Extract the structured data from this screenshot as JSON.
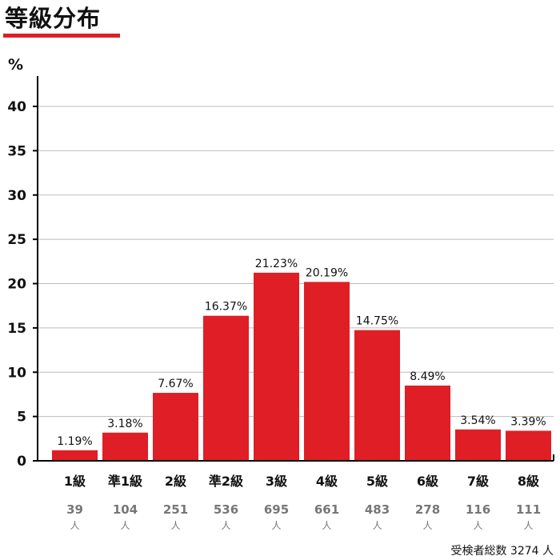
{
  "title": "等級分布",
  "colors": {
    "bar": "#e01e26",
    "accent_line": "#e01e26",
    "grid": "#bbbbbb",
    "axis": "#000000",
    "count_text": "#777777"
  },
  "chart_data": {
    "type": "bar",
    "title": "等級分布",
    "ylabel": "%",
    "xlabel": "",
    "ylim": [
      0,
      43
    ],
    "yticks": [
      0,
      5,
      10,
      15,
      20,
      25,
      30,
      35,
      40
    ],
    "grid": true,
    "categories": [
      "1級",
      "準1級",
      "2級",
      "準2級",
      "3級",
      "4級",
      "5級",
      "6級",
      "7級",
      "8級"
    ],
    "values": [
      1.19,
      3.18,
      7.67,
      16.37,
      21.23,
      20.19,
      14.75,
      8.49,
      3.54,
      3.39
    ],
    "value_labels": [
      "1.19%",
      "3.18%",
      "7.67%",
      "16.37%",
      "21.23%",
      "20.19%",
      "14.75%",
      "8.49%",
      "3.54%",
      "3.39%"
    ],
    "counts": [
      "39",
      "104",
      "251",
      "536",
      "695",
      "661",
      "483",
      "278",
      "116",
      "111"
    ],
    "count_unit": "人"
  },
  "footer": {
    "total_text": "受検者総数 3274 人"
  }
}
